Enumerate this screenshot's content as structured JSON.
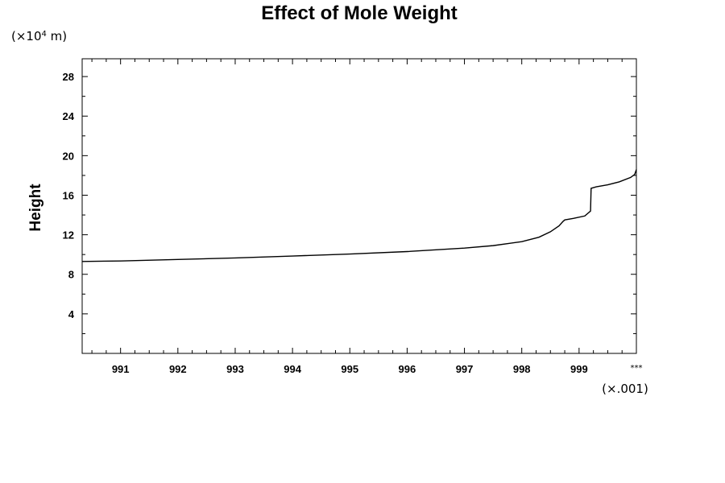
{
  "chart_data": {
    "type": "line",
    "title": "Effect of Mole Weight",
    "ylabel": "Height",
    "xlabel": "",
    "y_scale_prefix": "(×10",
    "y_scale_exponent": "4",
    "y_scale_suffix": " m)",
    "x_scale_label": "(×.001)",
    "x_end_label": "***",
    "xlim": [
      990.33,
      1000.0
    ],
    "ylim": [
      0,
      29.8
    ],
    "x_ticks": [
      991,
      992,
      993,
      994,
      995,
      996,
      997,
      998,
      999
    ],
    "x_tick_labels": [
      "991",
      "992",
      "993",
      "994",
      "995",
      "996",
      "997",
      "998",
      "999"
    ],
    "y_ticks": [
      4,
      8,
      12,
      16,
      20,
      24,
      28
    ],
    "y_tick_labels": [
      "4",
      "8",
      "12",
      "16",
      "20",
      "24",
      "28"
    ],
    "grid": false,
    "series": [
      {
        "x": [
          990.33,
          991,
          992,
          993,
          994,
          995,
          996,
          997,
          997.5,
          998,
          998.3,
          998.5,
          998.65,
          998.72,
          998.75,
          998.9,
          999.1,
          999.2,
          999.21,
          999.3,
          999.5,
          999.7,
          999.9,
          999.97,
          1000.0
        ],
        "y": [
          9.3,
          9.35,
          9.5,
          9.65,
          9.85,
          10.05,
          10.3,
          10.65,
          10.9,
          11.3,
          11.75,
          12.3,
          12.9,
          13.35,
          13.5,
          13.65,
          13.9,
          14.4,
          16.7,
          16.85,
          17.05,
          17.35,
          17.8,
          18.1,
          18.6
        ]
      }
    ]
  }
}
